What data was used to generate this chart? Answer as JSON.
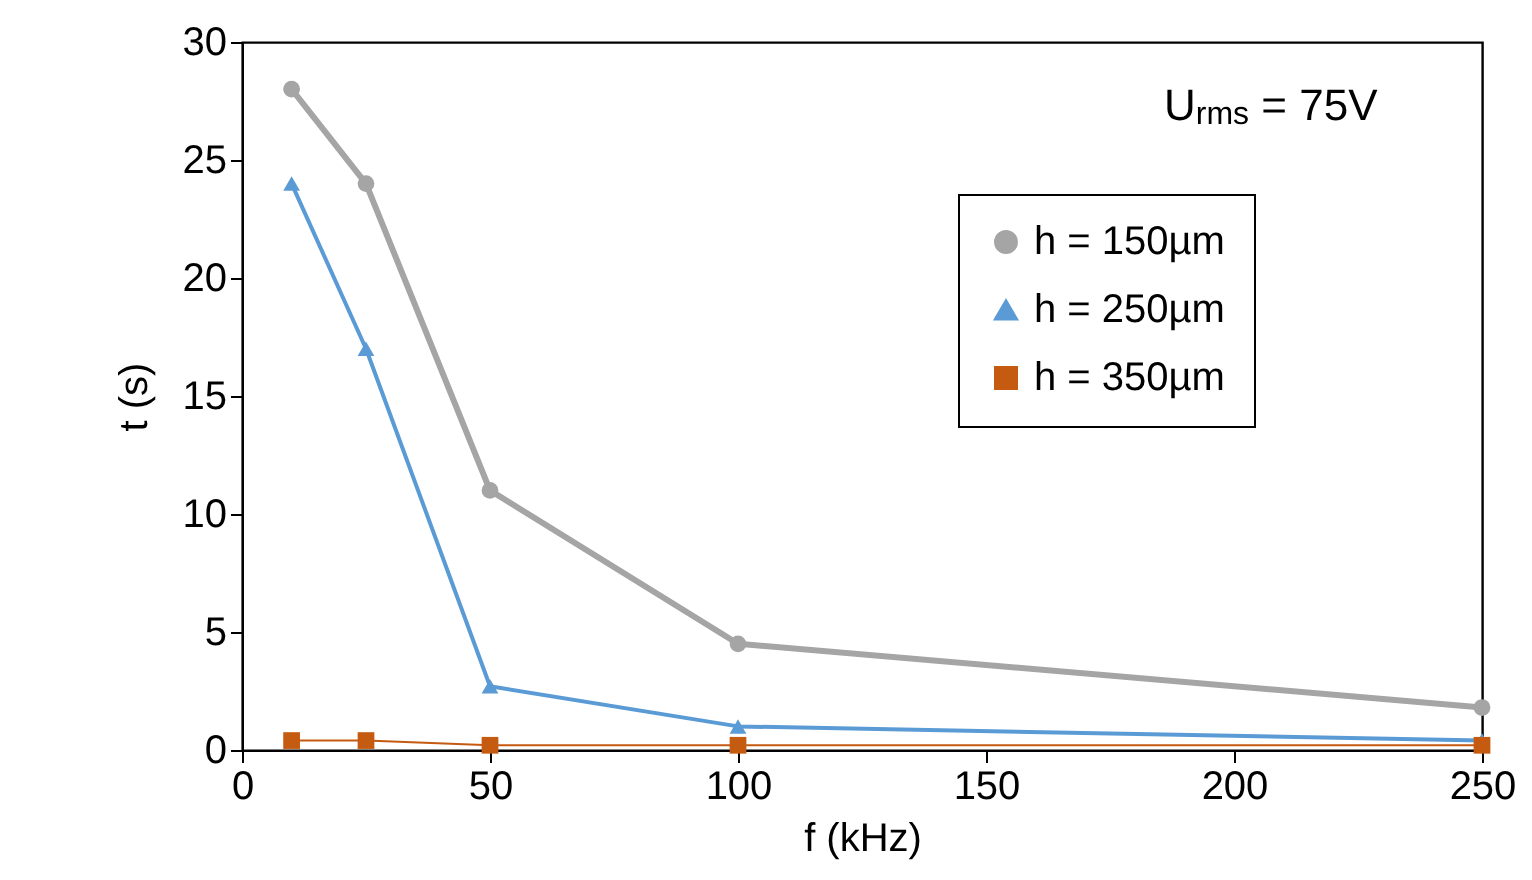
{
  "chart_data": {
    "type": "line",
    "xlabel": "f (kHz)",
    "ylabel": "t (s)",
    "annotations": [
      "U$_{rms}$ = 75V"
    ],
    "x": [
      10,
      25,
      50,
      100,
      250
    ],
    "xlim": [
      0,
      250
    ],
    "xticks": [
      0,
      50,
      100,
      150,
      200,
      250
    ],
    "ylim": [
      0,
      30
    ],
    "yticks": [
      0,
      5,
      10,
      15,
      20,
      25,
      30
    ],
    "grid": false,
    "legend": "top right",
    "series": [
      {
        "name": "h = 150µm",
        "color": "#a5a5a5",
        "marker": "circle",
        "values": [
          28,
          24,
          11,
          4.5,
          1.8
        ]
      },
      {
        "name": "h = 250µm",
        "color": "#5b9bd5",
        "marker": "triangle",
        "values": [
          24,
          17,
          2.7,
          1.0,
          0.4
        ]
      },
      {
        "name": "h = 350µm",
        "color": "#c55a11",
        "marker": "square",
        "values": [
          0.4,
          0.4,
          0.2,
          0.2,
          0.2
        ]
      }
    ]
  }
}
